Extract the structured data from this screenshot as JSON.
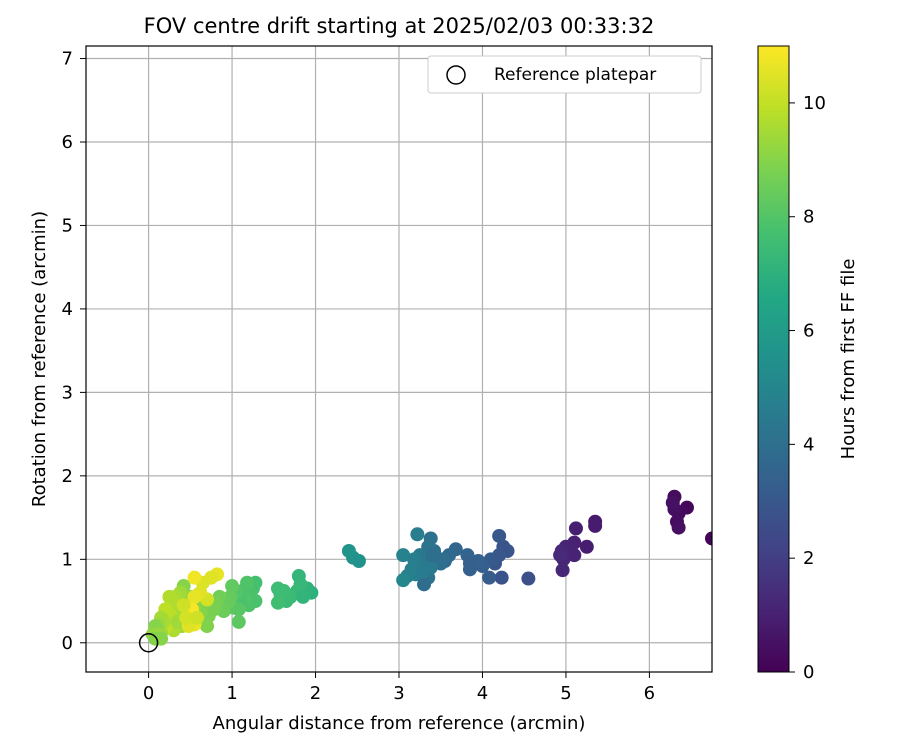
{
  "chart_data": {
    "type": "scatter",
    "title": "FOV centre drift starting at 2025/02/03 00:33:32",
    "xlabel": "Angular distance from reference (arcmin)",
    "ylabel": "Rotation from reference (arcmin)",
    "xlim": [
      -0.75,
      6.75
    ],
    "ylim": [
      -0.35,
      7.15
    ],
    "xticks": [
      0,
      1,
      2,
      3,
      4,
      5,
      6
    ],
    "yticks": [
      0,
      1,
      2,
      3,
      4,
      5,
      6,
      7
    ],
    "grid": true,
    "legend": {
      "position": "top-right",
      "entries": [
        "Reference platepar"
      ]
    },
    "reference_point": {
      "x": 0,
      "y": 0,
      "marker": "open-circle"
    },
    "colorbar": {
      "label": "Hours from first FF file",
      "colormap": "viridis",
      "range": [
        0,
        11
      ],
      "ticks": [
        0,
        2,
        4,
        6,
        8,
        10
      ]
    },
    "points": [
      [
        6.75,
        1.25,
        0.1
      ],
      [
        6.45,
        1.62,
        0.2
      ],
      [
        6.35,
        1.55,
        0.25
      ],
      [
        6.3,
        1.75,
        0.3
      ],
      [
        6.33,
        1.45,
        0.35
      ],
      [
        6.3,
        1.6,
        0.4
      ],
      [
        6.35,
        1.38,
        0.45
      ],
      [
        6.28,
        1.68,
        0.5
      ],
      [
        5.35,
        1.45,
        0.8
      ],
      [
        5.35,
        1.4,
        0.85
      ],
      [
        5.25,
        1.15,
        0.9
      ],
      [
        5.12,
        1.37,
        0.95
      ],
      [
        5.1,
        1.2,
        1.0
      ],
      [
        5.1,
        1.05,
        1.05
      ],
      [
        5.0,
        1.15,
        1.1
      ],
      [
        4.97,
        1.0,
        1.15
      ],
      [
        4.95,
        1.1,
        1.2
      ],
      [
        4.96,
        0.87,
        1.25
      ],
      [
        4.93,
        1.05,
        1.3
      ],
      [
        4.55,
        0.77,
        2.7
      ],
      [
        4.3,
        1.1,
        2.9
      ],
      [
        4.25,
        1.15,
        2.85
      ],
      [
        4.2,
        1.28,
        3.0
      ],
      [
        4.2,
        1.05,
        3.0
      ],
      [
        4.15,
        0.95,
        2.95
      ],
      [
        4.1,
        1.0,
        3.1
      ],
      [
        4.23,
        0.78,
        2.8
      ],
      [
        4.08,
        0.78,
        3.2
      ],
      [
        4.0,
        0.92,
        3.3
      ],
      [
        3.95,
        0.98,
        3.4
      ],
      [
        3.82,
        1.05,
        3.5
      ],
      [
        3.85,
        0.95,
        3.3
      ],
      [
        3.85,
        0.88,
        3.35
      ],
      [
        3.68,
        1.12,
        3.6
      ],
      [
        3.6,
        1.05,
        3.7
      ],
      [
        3.55,
        0.98,
        3.8
      ],
      [
        3.5,
        0.95,
        3.9
      ],
      [
        3.42,
        1.1,
        4.0
      ],
      [
        3.38,
        1.25,
        4.1
      ],
      [
        3.35,
        1.15,
        4.2
      ],
      [
        3.3,
        1.0,
        4.3
      ],
      [
        3.25,
        1.05,
        4.4
      ],
      [
        3.25,
        0.92,
        4.5
      ],
      [
        3.2,
        0.82,
        4.6
      ],
      [
        3.15,
        0.88,
        4.7
      ],
      [
        3.1,
        0.8,
        4.8
      ],
      [
        3.05,
        1.05,
        4.9
      ],
      [
        3.05,
        0.75,
        5.0
      ],
      [
        3.22,
        1.3,
        4.6
      ],
      [
        3.35,
        0.78,
        4.2
      ],
      [
        3.3,
        0.7,
        3.9
      ],
      [
        3.45,
        1.0,
        4.3
      ],
      [
        3.38,
        0.9,
        4.45
      ],
      [
        3.28,
        0.85,
        4.55
      ],
      [
        3.18,
        1.0,
        4.65
      ],
      [
        3.4,
        1.05,
        4.0
      ],
      [
        3.52,
        1.0,
        3.95
      ],
      [
        2.52,
        0.98,
        5.5
      ],
      [
        2.45,
        1.02,
        5.6
      ],
      [
        2.4,
        1.1,
        5.7
      ],
      [
        1.95,
        0.6,
        7.0
      ],
      [
        1.9,
        0.65,
        7.1
      ],
      [
        1.8,
        0.8,
        7.2
      ],
      [
        1.82,
        0.7,
        7.25
      ],
      [
        1.78,
        0.62,
        7.3
      ],
      [
        1.7,
        0.55,
        7.4
      ],
      [
        1.65,
        0.5,
        7.45
      ],
      [
        1.62,
        0.62,
        7.5
      ],
      [
        1.58,
        0.58,
        7.55
      ],
      [
        1.55,
        0.48,
        7.6
      ],
      [
        1.55,
        0.65,
        7.5
      ],
      [
        1.85,
        0.55,
        7.15
      ],
      [
        1.28,
        0.72,
        7.7
      ],
      [
        1.25,
        0.65,
        7.75
      ],
      [
        1.28,
        0.5,
        7.8
      ],
      [
        1.22,
        0.58,
        7.85
      ],
      [
        1.2,
        0.45,
        7.9
      ],
      [
        1.18,
        0.72,
        7.95
      ],
      [
        1.15,
        0.55,
        8.0
      ],
      [
        1.12,
        0.62,
        7.9
      ],
      [
        1.1,
        0.5,
        7.85
      ],
      [
        1.08,
        0.4,
        8.1
      ],
      [
        1.08,
        0.25,
        8.2
      ],
      [
        1.05,
        0.6,
        8.0
      ],
      [
        1.02,
        0.42,
        8.15
      ],
      [
        1.0,
        0.68,
        8.3
      ],
      [
        0.98,
        0.55,
        8.35
      ],
      [
        0.95,
        0.48,
        8.4
      ],
      [
        0.9,
        0.38,
        8.5
      ],
      [
        0.85,
        0.55,
        8.6
      ],
      [
        0.8,
        0.48,
        8.7
      ],
      [
        0.78,
        0.4,
        8.75
      ],
      [
        0.72,
        0.32,
        8.8
      ],
      [
        0.7,
        0.2,
        8.9
      ],
      [
        0.68,
        0.48,
        8.85
      ],
      [
        0.65,
        0.45,
        8.9
      ],
      [
        0.62,
        0.35,
        8.95
      ],
      [
        0.6,
        0.58,
        9.0
      ],
      [
        0.55,
        0.42,
        9.1
      ],
      [
        0.52,
        0.3,
        9.15
      ],
      [
        0.5,
        0.55,
        9.1
      ],
      [
        0.48,
        0.25,
        9.2
      ],
      [
        0.45,
        0.5,
        9.25
      ],
      [
        0.42,
        0.68,
        9.0
      ],
      [
        0.42,
        0.38,
        9.3
      ],
      [
        0.4,
        0.2,
        9.35
      ],
      [
        0.38,
        0.6,
        9.4
      ],
      [
        0.35,
        0.45,
        9.45
      ],
      [
        0.35,
        0.3,
        9.5
      ],
      [
        0.32,
        0.55,
        9.55
      ],
      [
        0.3,
        0.4,
        9.6
      ],
      [
        0.3,
        0.15,
        9.65
      ],
      [
        0.28,
        0.5,
        9.7
      ],
      [
        0.28,
        0.25,
        9.75
      ],
      [
        0.25,
        0.35,
        9.8
      ],
      [
        0.25,
        0.55,
        9.7
      ],
      [
        0.22,
        0.3,
        9.85
      ],
      [
        0.2,
        0.4,
        9.9
      ],
      [
        0.2,
        0.18,
        9.95
      ],
      [
        0.18,
        0.25,
        9.6
      ],
      [
        0.15,
        0.3,
        9.5
      ],
      [
        0.15,
        0.12,
        9.4
      ],
      [
        0.12,
        0.22,
        9.3
      ],
      [
        0.1,
        0.05,
        9.2
      ],
      [
        0.1,
        0.15,
        9.1
      ],
      [
        0.08,
        0.2,
        9.0
      ],
      [
        0.05,
        0.1,
        9.2
      ],
      [
        0.12,
        0.1,
        9.3
      ],
      [
        0.15,
        0.05,
        9.0
      ],
      [
        0.08,
        0.05,
        8.95
      ],
      [
        0.35,
        0.25,
        9.4
      ],
      [
        0.82,
        0.82,
        10.6
      ],
      [
        0.75,
        0.78,
        10.5
      ],
      [
        0.65,
        0.72,
        10.4
      ],
      [
        0.7,
        0.52,
        10.3
      ],
      [
        0.62,
        0.6,
        10.5
      ],
      [
        0.55,
        0.78,
        10.8
      ],
      [
        0.55,
        0.55,
        10.6
      ],
      [
        0.52,
        0.4,
        10.9
      ],
      [
        0.55,
        0.22,
        10.7
      ],
      [
        0.48,
        0.2,
        10.5
      ],
      [
        0.45,
        0.3,
        10.3
      ],
      [
        0.42,
        0.45,
        10.2
      ],
      [
        0.58,
        0.3,
        10.2
      ]
    ]
  }
}
